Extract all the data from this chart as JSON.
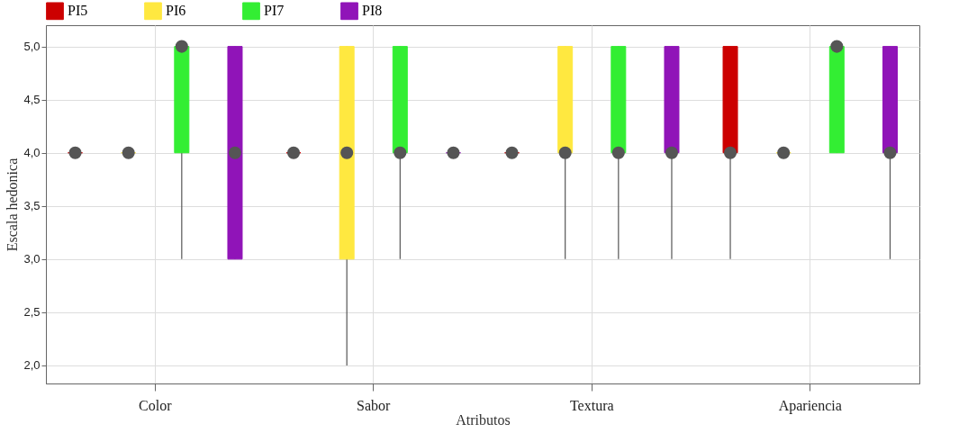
{
  "chart_data": {
    "type": "box",
    "xlabel": "Atributos",
    "ylabel": "Escala hedonica",
    "categories": [
      "Color",
      "Sabor",
      "Textura",
      "Apariencia"
    ],
    "ylim": [
      1.83,
      5.2
    ],
    "yticks": [
      {
        "value": 2,
        "label": "2,0"
      },
      {
        "value": 2.5,
        "label": "2,5"
      },
      {
        "value": 3,
        "label": "3,0"
      },
      {
        "value": 3.5,
        "label": "3,5"
      },
      {
        "value": 4,
        "label": "4,0"
      },
      {
        "value": 4.5,
        "label": "4,5"
      },
      {
        "value": 5,
        "label": "5,0"
      }
    ],
    "grid": true,
    "legend": "top",
    "marker": "circle",
    "series": [
      {
        "name": "PI5",
        "color": "#cc0000",
        "boxes": [
          {
            "low": 4,
            "q1": 4,
            "median": 4,
            "q3": 4,
            "high": 4
          },
          {
            "low": 4,
            "q1": 4,
            "median": 4,
            "q3": 4,
            "high": 4
          },
          {
            "low": 4,
            "q1": 4,
            "median": 4,
            "q3": 4,
            "high": 4
          },
          {
            "low": 3,
            "q1": 4,
            "median": 4,
            "q3": 5,
            "high": 5
          }
        ]
      },
      {
        "name": "PI6",
        "color": "#ffe840",
        "boxes": [
          {
            "low": 4,
            "q1": 4,
            "median": 4,
            "q3": 4,
            "high": 4
          },
          {
            "low": 2,
            "q1": 3,
            "median": 4,
            "q3": 5,
            "high": 5
          },
          {
            "low": 3,
            "q1": 4,
            "median": 4,
            "q3": 5,
            "high": 5
          },
          {
            "low": 4,
            "q1": 4,
            "median": 4,
            "q3": 4,
            "high": 4
          }
        ]
      },
      {
        "name": "PI7",
        "color": "#33ee33",
        "boxes": [
          {
            "low": 3,
            "q1": 4,
            "median": 5,
            "q3": 5,
            "high": 5
          },
          {
            "low": 3,
            "q1": 4,
            "median": 4,
            "q3": 5,
            "high": 5
          },
          {
            "low": 3,
            "q1": 4,
            "median": 4,
            "q3": 5,
            "high": 5
          },
          {
            "low": 4,
            "q1": 4,
            "median": 5,
            "q3": 5,
            "high": 5
          }
        ]
      },
      {
        "name": "PI8",
        "color": "#9014b8",
        "boxes": [
          {
            "low": 3,
            "q1": 3,
            "median": 4,
            "q3": 5,
            "high": 5
          },
          {
            "low": 4,
            "q1": 4,
            "median": 4,
            "q3": 4,
            "high": 4
          },
          {
            "low": 3,
            "q1": 4,
            "median": 4,
            "q3": 5,
            "high": 5
          },
          {
            "low": 3,
            "q1": 4,
            "median": 4,
            "q3": 5,
            "high": 5
          }
        ]
      }
    ]
  }
}
